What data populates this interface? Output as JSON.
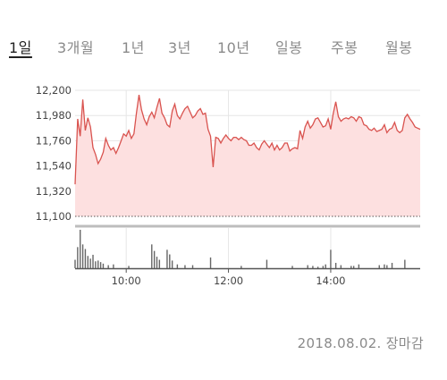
{
  "period_tabs": [
    {
      "label": "1일",
      "active": true
    },
    {
      "label": "3개월",
      "active": false
    },
    {
      "label": "1년",
      "active": false
    },
    {
      "label": "3년",
      "active": false
    },
    {
      "label": "10년",
      "active": false
    },
    {
      "label": "일봉",
      "active": false
    },
    {
      "label": "주봉",
      "active": false
    },
    {
      "label": "월봉",
      "active": false
    }
  ],
  "footer": {
    "timestamp": "2018.08.02. 장마감"
  },
  "colors": {
    "line": "#d9534f",
    "fill": "#fde0e0",
    "grid": "#e6e6e6",
    "volume": "#666666",
    "separator": "#bdbdbd"
  },
  "chart_data": {
    "type": "area",
    "title": "",
    "xlabel": "",
    "ylabel": "",
    "ylim": [
      11100,
      12200
    ],
    "yticks": [
      "12,200",
      "11,980",
      "11,760",
      "11,540",
      "11,320",
      "11,100"
    ],
    "xticks": [
      "10:00",
      "12:00",
      "14:00"
    ],
    "xlim": [
      "09:00",
      "15:45"
    ],
    "grid": true,
    "baseline": 11100,
    "price": {
      "x": [
        "09:00",
        "09:03",
        "09:06",
        "09:09",
        "09:12",
        "09:15",
        "09:18",
        "09:21",
        "09:24",
        "09:27",
        "09:30",
        "09:33",
        "09:36",
        "09:39",
        "09:42",
        "09:45",
        "09:48",
        "09:51",
        "09:54",
        "09:57",
        "10:00",
        "10:03",
        "10:06",
        "10:09",
        "10:12",
        "10:15",
        "10:18",
        "10:21",
        "10:24",
        "10:27",
        "10:30",
        "10:33",
        "10:36",
        "10:39",
        "10:42",
        "10:45",
        "10:48",
        "10:51",
        "10:54",
        "10:57",
        "11:00",
        "11:03",
        "11:06",
        "11:09",
        "11:12",
        "11:15",
        "11:18",
        "11:21",
        "11:24",
        "11:27",
        "11:30",
        "11:33",
        "11:36",
        "11:39",
        "11:42",
        "11:45",
        "11:48",
        "11:51",
        "11:54",
        "11:57",
        "12:00",
        "12:03",
        "12:06",
        "12:09",
        "12:12",
        "12:15",
        "12:18",
        "12:21",
        "12:24",
        "12:27",
        "12:30",
        "12:33",
        "12:36",
        "12:39",
        "12:42",
        "12:45",
        "12:48",
        "12:51",
        "12:54",
        "12:57",
        "13:00",
        "13:03",
        "13:06",
        "13:09",
        "13:12",
        "13:15",
        "13:18",
        "13:21",
        "13:24",
        "13:27",
        "13:30",
        "13:33",
        "13:36",
        "13:39",
        "13:42",
        "13:45",
        "13:48",
        "13:51",
        "13:54",
        "13:57",
        "14:00",
        "14:03",
        "14:06",
        "14:09",
        "14:12",
        "14:15",
        "14:18",
        "14:21",
        "14:24",
        "14:27",
        "14:30",
        "14:33",
        "14:36",
        "14:39",
        "14:42",
        "14:45",
        "14:48",
        "14:51",
        "14:54",
        "14:57",
        "15:00",
        "15:03",
        "15:06",
        "15:09",
        "15:12",
        "15:15",
        "15:18",
        "15:21",
        "15:24",
        "15:27",
        "15:30",
        "15:33",
        "15:36",
        "15:39",
        "15:42",
        "15:45"
      ],
      "y": [
        11380,
        11950,
        11800,
        12120,
        11850,
        11960,
        11880,
        11700,
        11640,
        11560,
        11600,
        11660,
        11780,
        11720,
        11680,
        11700,
        11650,
        11700,
        11760,
        11820,
        11800,
        11850,
        11780,
        11820,
        12000,
        12160,
        12030,
        11950,
        11900,
        11970,
        12010,
        11960,
        12050,
        12130,
        12000,
        11960,
        11900,
        11880,
        12020,
        12080,
        11980,
        11950,
        12000,
        12040,
        12060,
        12010,
        11960,
        11980,
        12020,
        12040,
        11990,
        12000,
        11860,
        11800,
        11530,
        11790,
        11780,
        11740,
        11780,
        11810,
        11780,
        11760,
        11790,
        11790,
        11770,
        11790,
        11770,
        11760,
        11720,
        11720,
        11740,
        11700,
        11680,
        11730,
        11760,
        11730,
        11700,
        11740,
        11680,
        11720,
        11680,
        11700,
        11740,
        11740,
        11670,
        11690,
        11700,
        11690,
        11850,
        11780,
        11880,
        11930,
        11870,
        11900,
        11950,
        11960,
        11920,
        11880,
        11890,
        11950,
        11860,
        12000,
        12100,
        11970,
        11930,
        11950,
        11960,
        11950,
        11970,
        11960,
        11930,
        11970,
        11960,
        11900,
        11890,
        11860,
        11850,
        11870,
        11840,
        11850,
        11860,
        11900,
        11830,
        11860,
        11870,
        11920,
        11850,
        11830,
        11850,
        11960,
        11990,
        11950,
        11920,
        11880,
        11870,
        11860
      ],
      "x_ticks_to_labels": [
        "10:00",
        "12:00",
        "14:00"
      ]
    },
    "volume": {
      "x": [
        "09:00",
        "09:03",
        "09:06",
        "09:09",
        "09:12",
        "09:15",
        "09:18",
        "09:21",
        "09:24",
        "09:27",
        "09:30",
        "09:33",
        "09:39",
        "09:45",
        "10:03",
        "10:30",
        "10:33",
        "10:36",
        "10:39",
        "10:48",
        "10:51",
        "10:54",
        "11:00",
        "11:09",
        "11:18",
        "11:39",
        "12:15",
        "12:45",
        "13:15",
        "13:33",
        "13:39",
        "13:45",
        "13:51",
        "13:54",
        "14:00",
        "14:06",
        "14:12",
        "14:24",
        "14:27",
        "14:33",
        "14:57",
        "15:03",
        "15:06",
        "15:12",
        "15:27"
      ],
      "values": [
        22,
        55,
        100,
        62,
        50,
        32,
        25,
        35,
        18,
        20,
        16,
        12,
        8,
        10,
        6,
        62,
        45,
        30,
        22,
        48,
        36,
        20,
        10,
        8,
        8,
        28,
        6,
        22,
        6,
        8,
        6,
        4,
        6,
        10,
        48,
        14,
        8,
        6,
        6,
        10,
        8,
        10,
        8,
        14,
        22
      ]
    }
  }
}
